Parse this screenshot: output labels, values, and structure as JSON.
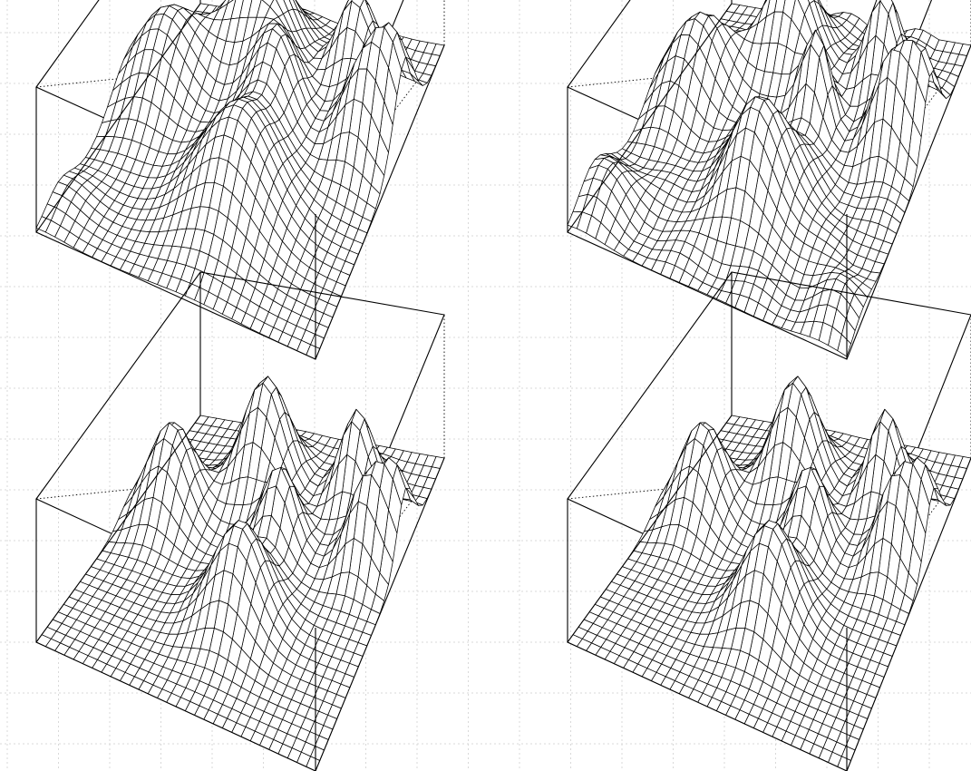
{
  "chart_data": [
    {
      "type": "surface",
      "panel": "top-left",
      "x_grid_points": 30,
      "y_grid_points": 30,
      "peaks": [
        {
          "x": 0.39,
          "y": 0.77,
          "height": 1.0,
          "width": 0.11
        },
        {
          "x": 0.13,
          "y": 0.58,
          "height": 0.87,
          "width": 0.12
        },
        {
          "x": 0.74,
          "y": 0.82,
          "height": 0.82,
          "width": 0.07
        },
        {
          "x": 0.55,
          "y": 0.6,
          "height": 0.72,
          "width": 0.08
        },
        {
          "x": 0.55,
          "y": 0.33,
          "height": 0.92,
          "width": 0.13
        },
        {
          "x": 0.87,
          "y": 0.62,
          "height": 0.72,
          "width": 0.08
        },
        {
          "x": 0.96,
          "y": 0.7,
          "height": 0.72,
          "width": 0.07
        },
        {
          "x": 0.02,
          "y": 0.14,
          "height": 0.18,
          "width": 0.08
        }
      ],
      "grid": false,
      "legend": "none"
    },
    {
      "type": "surface",
      "panel": "top-right",
      "x_grid_points": 30,
      "y_grid_points": 30,
      "peaks": [
        {
          "x": 0.39,
          "y": 0.77,
          "height": 1.0,
          "width": 0.1
        },
        {
          "x": 0.13,
          "y": 0.58,
          "height": 0.84,
          "width": 0.1
        },
        {
          "x": 0.74,
          "y": 0.82,
          "height": 0.88,
          "width": 0.06
        },
        {
          "x": 0.58,
          "y": 0.62,
          "height": 0.82,
          "width": 0.05
        },
        {
          "x": 0.52,
          "y": 0.33,
          "height": 0.94,
          "width": 0.11
        },
        {
          "x": 0.86,
          "y": 0.63,
          "height": 0.74,
          "width": 0.06
        },
        {
          "x": 0.96,
          "y": 0.68,
          "height": 0.78,
          "width": 0.06
        },
        {
          "x": 0.04,
          "y": 0.16,
          "height": 0.34,
          "width": 0.09
        },
        {
          "x": 0.9,
          "y": 0.13,
          "height": 0.2,
          "width": 0.08
        }
      ],
      "ripple": 0.06,
      "grid": false,
      "legend": "none"
    },
    {
      "type": "surface",
      "panel": "bottom-left",
      "x_grid_points": 30,
      "y_grid_points": 30,
      "peaks": [
        {
          "x": 0.4,
          "y": 0.78,
          "height": 1.0,
          "width": 0.08
        },
        {
          "x": 0.14,
          "y": 0.6,
          "height": 0.84,
          "width": 0.08
        },
        {
          "x": 0.74,
          "y": 0.82,
          "height": 0.79,
          "width": 0.06
        },
        {
          "x": 0.56,
          "y": 0.6,
          "height": 0.72,
          "width": 0.06
        },
        {
          "x": 0.55,
          "y": 0.34,
          "height": 0.86,
          "width": 0.09
        },
        {
          "x": 0.87,
          "y": 0.63,
          "height": 0.67,
          "width": 0.06
        },
        {
          "x": 0.96,
          "y": 0.7,
          "height": 0.67,
          "width": 0.06
        }
      ],
      "grid": false,
      "legend": "none"
    },
    {
      "type": "surface",
      "panel": "bottom-right",
      "x_grid_points": 30,
      "y_grid_points": 30,
      "peaks": [
        {
          "x": 0.4,
          "y": 0.78,
          "height": 1.0,
          "width": 0.08
        },
        {
          "x": 0.14,
          "y": 0.6,
          "height": 0.84,
          "width": 0.08
        },
        {
          "x": 0.74,
          "y": 0.82,
          "height": 0.79,
          "width": 0.06
        },
        {
          "x": 0.56,
          "y": 0.6,
          "height": 0.72,
          "width": 0.06
        },
        {
          "x": 0.55,
          "y": 0.34,
          "height": 0.86,
          "width": 0.09
        },
        {
          "x": 0.87,
          "y": 0.63,
          "height": 0.67,
          "width": 0.06
        },
        {
          "x": 0.96,
          "y": 0.7,
          "height": 0.67,
          "width": 0.06
        }
      ],
      "grid": false,
      "legend": "none"
    }
  ],
  "colors": {
    "mesh_line": "#000000",
    "surface_fill": "#ffffff",
    "box": "#000000",
    "background_grid": "#d9d9d9"
  }
}
